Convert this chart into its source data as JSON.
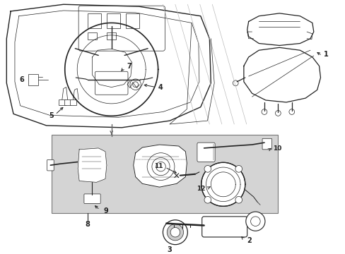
{
  "bg_color": "#ffffff",
  "fig_width": 4.89,
  "fig_height": 3.6,
  "dpi": 100,
  "col": "#222222",
  "shade_color": "#d8d8d8",
  "gray_line": "#888888"
}
